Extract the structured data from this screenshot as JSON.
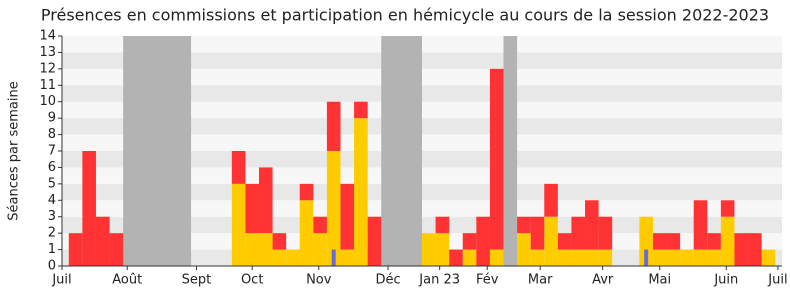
{
  "chart_data": {
    "type": "bar",
    "stacked": true,
    "title": "Présences en commissions et participation en hémicycle au cours de la session 2022-2023",
    "y_label": "Séances par semaine",
    "x": [
      0,
      1,
      2,
      3,
      4,
      5,
      6,
      7,
      8,
      9,
      10,
      11,
      12,
      13,
      14,
      15,
      16,
      17,
      18,
      19,
      20,
      21,
      22,
      23,
      24,
      25,
      26,
      27,
      28,
      29,
      30,
      31,
      32,
      33,
      34,
      35,
      36,
      37,
      38,
      39,
      40,
      41,
      42,
      43,
      44,
      45,
      46,
      47,
      48,
      49,
      50,
      51
    ],
    "series": [
      {
        "color": "#ffcc00",
        "values": [
          0,
          0,
          0,
          0,
          0,
          0,
          0,
          0,
          0,
          0,
          0,
          0,
          5,
          2,
          2,
          1,
          1,
          4,
          2,
          7,
          1,
          9,
          0,
          0,
          0,
          0,
          2,
          2,
          0,
          1,
          0,
          1,
          0,
          2,
          1,
          3,
          1,
          1,
          1,
          1,
          0,
          0,
          3,
          1,
          1,
          1,
          1,
          1,
          3,
          0,
          0,
          1
        ]
      },
      {
        "color": "#ff3333",
        "values": [
          2,
          7,
          3,
          2,
          0,
          0,
          0,
          0,
          0,
          0,
          0,
          0,
          2,
          3,
          4,
          1,
          0,
          1,
          1,
          3,
          4,
          1,
          3,
          0,
          0,
          0,
          0,
          1,
          1,
          1,
          3,
          11,
          0,
          1,
          2,
          2,
          1,
          2,
          3,
          2,
          0,
          0,
          0,
          1,
          1,
          0,
          3,
          1,
          1,
          2,
          2,
          0
        ]
      },
      {
        "color": "#6a6ad8",
        "overlay": true,
        "values": [
          0,
          0,
          0,
          0,
          0,
          0,
          0,
          0,
          0,
          0,
          0,
          0,
          0,
          0,
          0,
          0,
          0,
          0,
          0,
          1,
          0,
          0,
          0,
          0,
          0,
          0,
          0,
          0,
          0,
          0,
          0,
          0,
          0,
          0,
          0,
          0,
          0,
          0,
          0,
          0,
          0,
          0,
          1,
          0,
          0,
          0,
          0,
          0,
          0,
          0,
          0,
          0
        ]
      }
    ],
    "shaded_ranges": [
      [
        3.5,
        8.5
      ],
      [
        22.5,
        25.5
      ],
      [
        31.5,
        32.5
      ]
    ],
    "shaded_color": "#b3b3b3",
    "xlim": [
      -1,
      52
    ],
    "xticks": [
      {
        "value": -1,
        "label": "Juil"
      },
      {
        "value": 3.8,
        "label": "Août"
      },
      {
        "value": 8.9,
        "label": "Sept"
      },
      {
        "value": 13,
        "label": "Oct"
      },
      {
        "value": 17.9,
        "label": "Nov"
      },
      {
        "value": 23,
        "label": "Déc"
      },
      {
        "value": 26.8,
        "label": "Jan 23"
      },
      {
        "value": 30.3,
        "label": "Fév"
      },
      {
        "value": 34.2,
        "label": "Mar"
      },
      {
        "value": 38.8,
        "label": "Avr"
      },
      {
        "value": 43,
        "label": "Mai"
      },
      {
        "value": 47.9,
        "label": "Juin"
      },
      {
        "value": 51.7,
        "label": "Juil"
      }
    ],
    "ylim": [
      0,
      14
    ],
    "yticks": [
      0,
      1,
      2,
      3,
      4,
      5,
      6,
      7,
      8,
      9,
      10,
      11,
      12,
      13,
      14
    ],
    "grid": true
  }
}
